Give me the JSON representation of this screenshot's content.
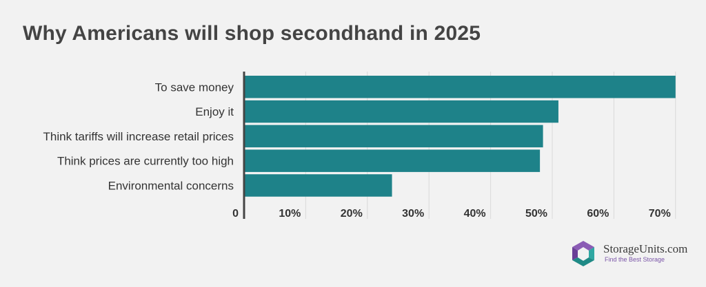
{
  "chart_data": {
    "type": "bar",
    "orientation": "horizontal",
    "title": "Why Americans will shop secondhand in 2025",
    "categories": [
      "To save money",
      "Enjoy it",
      "Think tariffs will increase retail prices",
      "Think prices are currently too high",
      "Environmental concerns"
    ],
    "values": [
      70,
      51,
      48.5,
      48,
      24
    ],
    "xlim": [
      0,
      70
    ],
    "xticks": [
      "0",
      "10%",
      "20%",
      "30%",
      "40%",
      "50%",
      "60%",
      "70%"
    ],
    "grid": true,
    "colors": {
      "bar": "#1e8289",
      "axis": "#444444",
      "grid": "#d9d9d9"
    }
  },
  "brand": {
    "name": "StorageUnits.com",
    "tagline": "Find the Best Storage"
  }
}
